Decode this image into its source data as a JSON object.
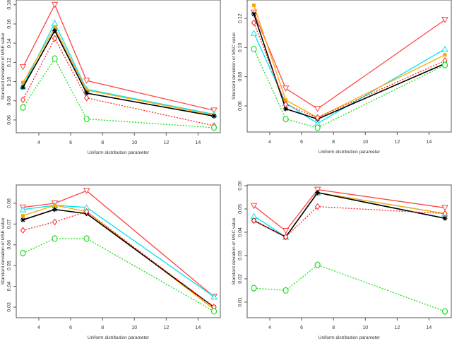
{
  "chart_data": [
    {
      "type": "line",
      "xlabel": "Uniform distribution parameter",
      "ylabel": "Standard deviation of MSE value",
      "x": [
        3,
        5,
        7,
        15
      ],
      "xticks": [
        4,
        6,
        8,
        10,
        12,
        14
      ],
      "yticks": [
        0.06,
        0.08,
        0.1,
        0.12,
        0.14,
        0.16,
        0.18
      ],
      "xlim": [
        2.58,
        15.4
      ],
      "ylim": [
        0.0467,
        0.185
      ],
      "grid": false,
      "series": [
        {
          "values": [
            0.115,
            0.18,
            0.101,
            0.07
          ],
          "color": "#ff4444",
          "marker": "triangle-down",
          "dash": false
        },
        {
          "values": [
            0.095,
            0.161,
            0.092,
            0.066
          ],
          "color": "#00e5ee",
          "marker": "triangle-up",
          "dash": false
        },
        {
          "values": [
            0.099,
            0.156,
            0.091,
            0.065
          ],
          "color": "#ffa500",
          "marker": "filled-square",
          "dash": false
        },
        {
          "values": [
            0.094,
            0.153,
            0.088,
            0.064
          ],
          "color": "#000000",
          "marker": "star",
          "dash": false
        },
        {
          "values": [
            0.081,
            0.145,
            0.083,
            0.054
          ],
          "color": "#ff2222",
          "marker": "diamond",
          "dash": true
        },
        {
          "values": [
            0.073,
            0.124,
            0.061,
            0.052
          ],
          "color": "#22dd22",
          "marker": "circle",
          "dash": true
        }
      ]
    },
    {
      "type": "line",
      "xlabel": "Uniform distribution parameter",
      "ylabel": "Standard deviation of MSC value",
      "x": [
        3,
        5,
        7,
        15
      ],
      "xticks": [
        4,
        6,
        8,
        10,
        12,
        14
      ],
      "yticks": [
        0.06,
        0.08,
        0.1,
        0.12
      ],
      "xlim": [
        2.58,
        15.4
      ],
      "ylim": [
        0.0421,
        0.1326
      ],
      "grid": false,
      "series": [
        {
          "values": [
            0.124,
            0.072,
            0.058,
            0.119
          ],
          "color": "#ff4444",
          "marker": "triangle-down",
          "dash": false
        },
        {
          "values": [
            0.11,
            0.062,
            0.048,
            0.099
          ],
          "color": "#00e5ee",
          "marker": "triangle-up",
          "dash": false
        },
        {
          "values": [
            0.129,
            0.064,
            0.052,
            0.095
          ],
          "color": "#ffa500",
          "marker": "filled-square",
          "dash": false
        },
        {
          "values": [
            0.123,
            0.058,
            0.051,
            0.089
          ],
          "color": "#000000",
          "marker": "star",
          "dash": false
        },
        {
          "values": [
            0.117,
            0.061,
            0.052,
            0.091
          ],
          "color": "#ff2222",
          "marker": "diamond",
          "dash": true
        },
        {
          "values": [
            0.099,
            0.051,
            0.045,
            0.088
          ],
          "color": "#22dd22",
          "marker": "circle",
          "dash": true
        }
      ]
    },
    {
      "type": "line",
      "xlabel": "Uniform distribution parameter",
      "ylabel": "Standard deviation of MSE value",
      "x": [
        3,
        5,
        7,
        15
      ],
      "xticks": [
        4,
        6,
        8,
        10,
        12,
        14
      ],
      "yticks": [
        0.03,
        0.04,
        0.05,
        0.06,
        0.07,
        0.08
      ],
      "xlim": [
        2.58,
        15.4
      ],
      "ylim": [
        0.0249,
        0.0888
      ],
      "grid": false,
      "series": [
        {
          "values": [
            0.078,
            0.08,
            0.086,
            0.035
          ],
          "color": "#ff4444",
          "marker": "triangle-down",
          "dash": false
        },
        {
          "values": [
            0.077,
            0.079,
            0.078,
            0.035
          ],
          "color": "#00e5ee",
          "marker": "triangle-up",
          "dash": false
        },
        {
          "values": [
            0.074,
            0.079,
            0.076,
            0.029
          ],
          "color": "#ffa500",
          "marker": "filled-square",
          "dash": false
        },
        {
          "values": [
            0.072,
            0.077,
            0.075,
            0.03
          ],
          "color": "#000000",
          "marker": "star",
          "dash": false
        },
        {
          "values": [
            0.067,
            0.071,
            0.076,
            0.03
          ],
          "color": "#ff2222",
          "marker": "diamond",
          "dash": true
        },
        {
          "values": [
            0.056,
            0.063,
            0.063,
            0.028
          ],
          "color": "#22dd22",
          "marker": "circle",
          "dash": true
        }
      ]
    },
    {
      "type": "line",
      "xlabel": "Uniform distribution parameter",
      "ylabel": "Standard deviation of MSC value",
      "x": [
        3,
        5,
        7,
        15
      ],
      "xticks": [
        4,
        6,
        8,
        10,
        12,
        14
      ],
      "yticks": [
        0.01,
        0.02,
        0.03,
        0.04,
        0.05,
        0.06
      ],
      "xlim": [
        2.58,
        15.4
      ],
      "ylim": [
        0.0033,
        0.0603
      ],
      "grid": false,
      "series": [
        {
          "values": [
            0.0513,
            0.0406,
            0.0583,
            0.0505
          ],
          "color": "#ff4444",
          "marker": "triangle-down",
          "dash": false
        },
        {
          "values": [
            0.047,
            0.038,
            0.057,
            0.048
          ],
          "color": "#00e5ee",
          "marker": "triangle-up",
          "dash": false
        },
        {
          "values": [
            0.045,
            0.038,
            0.057,
            0.048
          ],
          "color": "#ffa500",
          "marker": "filled-square",
          "dash": false
        },
        {
          "values": [
            0.045,
            0.038,
            0.057,
            0.046
          ],
          "color": "#000000",
          "marker": "star",
          "dash": false
        },
        {
          "values": [
            0.045,
            0.038,
            0.051,
            0.048
          ],
          "color": "#ff2222",
          "marker": "diamond",
          "dash": true
        },
        {
          "values": [
            0.016,
            0.015,
            0.026,
            0.006
          ],
          "color": "#22dd22",
          "marker": "circle",
          "dash": true
        }
      ]
    }
  ]
}
